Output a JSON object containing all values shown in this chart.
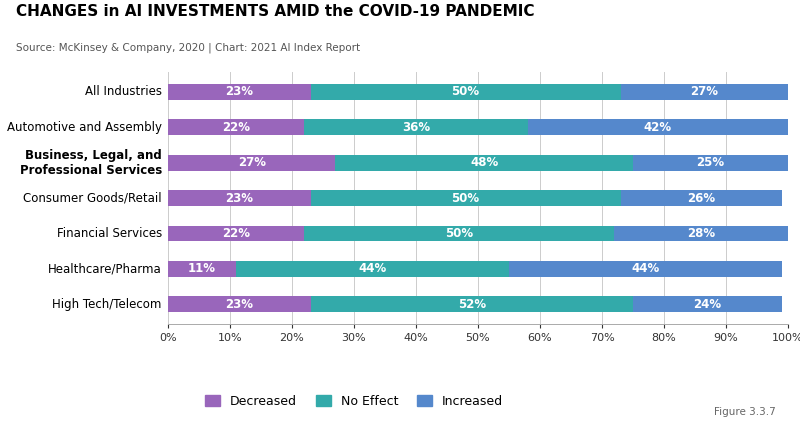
{
  "title": "CHANGES in AI INVESTMENTS AMID the COVID-19 PANDEMIC",
  "subtitle": "Source: McKinsey & Company, 2020 | Chart: 2021 AI Index Report",
  "figure_label": "Figure 3.3.7",
  "categories": [
    "All Industries",
    "Automotive and Assembly",
    "Business, Legal, and\nProfessional Services",
    "Consumer Goods/Retail",
    "Financial Services",
    "Healthcare/Pharma",
    "High Tech/Telecom"
  ],
  "categories_bold": [
    false,
    false,
    true,
    false,
    false,
    false,
    false
  ],
  "decreased": [
    23,
    22,
    27,
    23,
    22,
    11,
    23
  ],
  "no_effect": [
    50,
    36,
    48,
    50,
    50,
    44,
    52
  ],
  "increased": [
    27,
    42,
    25,
    26,
    28,
    44,
    24
  ],
  "color_decreased": "#9966BB",
  "color_no_effect": "#33AAAA",
  "color_increased": "#5588CC",
  "background_color": "#FFFFFF",
  "bar_height": 0.45,
  "xlabel_ticks": [
    0,
    10,
    20,
    30,
    40,
    50,
    60,
    70,
    80,
    90,
    100
  ],
  "legend_labels": [
    "Decreased",
    "No Effect",
    "Increased"
  ],
  "title_fontsize": 11,
  "subtitle_fontsize": 7.5,
  "label_fontsize": 8.5,
  "tick_fontsize": 8
}
